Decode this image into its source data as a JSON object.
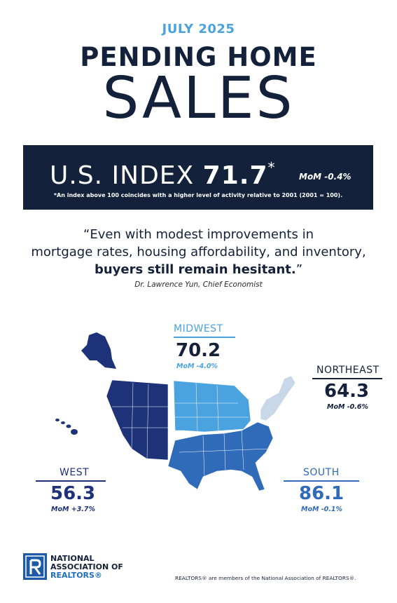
{
  "header": {
    "month": "JULY 2025",
    "title_line1": "PENDING HOME",
    "title_line2": "SALES"
  },
  "us_index": {
    "label": "U.S. INDEX",
    "value": "71.7",
    "asterisk": "*",
    "mom": "MoM -0.4%",
    "note": "*An index above 100 coincides with a higher level of activity relative to 2001 (2001 = 100)."
  },
  "quote": {
    "line1": "“Even with modest improvements in",
    "line2": "mortgage rates, housing affordability, and inventory,",
    "line3_bold": "buyers still remain hesitant.",
    "line3_end": "”",
    "author": "Dr. Lawrence Yun, Chief Economist"
  },
  "regions": {
    "midwest": {
      "name": "MIDWEST",
      "value": "70.2",
      "mom": "MoM -4.0%"
    },
    "northeast": {
      "name": "NORTHEAST",
      "value": "64.3",
      "mom": "MoM -0.6%"
    },
    "west": {
      "name": "WEST",
      "value": "56.3",
      "mom": "MoM +3.7%"
    },
    "south": {
      "name": "SOUTH",
      "value": "86.1",
      "mom": "MoM -0.1%"
    }
  },
  "colors": {
    "navy": "#14213a",
    "west": "#1d3278",
    "midwest": "#4aa3df",
    "south": "#2f6bb8",
    "northeast": "#c8d8e8"
  },
  "footer": {
    "org_line1": "NATIONAL",
    "org_line2": "ASSOCIATION OF",
    "org_line3": "REALTORS®",
    "disclaimer": "REALTORS® are members of the National Association of REALTORS®."
  }
}
